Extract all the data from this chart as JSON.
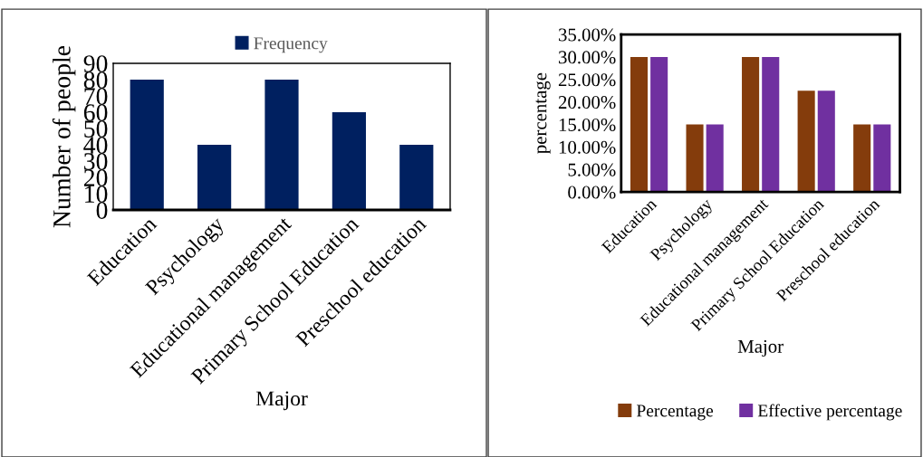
{
  "chart_data": [
    {
      "type": "bar",
      "categories": [
        "Education",
        "Psychology",
        "Educational management",
        "Primary School Education",
        "Preschool education"
      ],
      "xlabel": "Major",
      "ylabel": "Number of people",
      "series": [
        {
          "name": "Frequency",
          "color": "#002060",
          "values": [
            80,
            40,
            80,
            60,
            40
          ]
        }
      ],
      "ylim": [
        0,
        90
      ],
      "yticks": [
        0,
        10,
        20,
        30,
        40,
        50,
        60,
        70,
        80,
        90
      ],
      "grid": false,
      "legend": "top"
    },
    {
      "type": "bar",
      "categories": [
        "Education",
        "Psychology",
        "Educational management",
        "Primary School Education",
        "Preschool education"
      ],
      "xlabel": "Major",
      "ylabel": "percentage",
      "series": [
        {
          "name": "Percentage",
          "color": "#843c0c",
          "values": [
            30,
            15,
            30,
            22.5,
            15
          ]
        },
        {
          "name": "Effective percentage",
          "color": "#7030a0",
          "values": [
            30,
            15,
            30,
            22.5,
            15
          ]
        }
      ],
      "ylim": [
        0,
        35
      ],
      "yticks": [
        {
          "value": 0,
          "label": "0.00%"
        },
        {
          "value": 5,
          "label": "5.00%"
        },
        {
          "value": 10,
          "label": "10.00%"
        },
        {
          "value": 15,
          "label": "15.00%"
        },
        {
          "value": 20,
          "label": "20.00%"
        },
        {
          "value": 25,
          "label": "25.00%"
        },
        {
          "value": 30,
          "label": "30.00%"
        },
        {
          "value": 35,
          "label": "35.00%"
        }
      ],
      "grid": false,
      "legend": "bottom"
    }
  ]
}
